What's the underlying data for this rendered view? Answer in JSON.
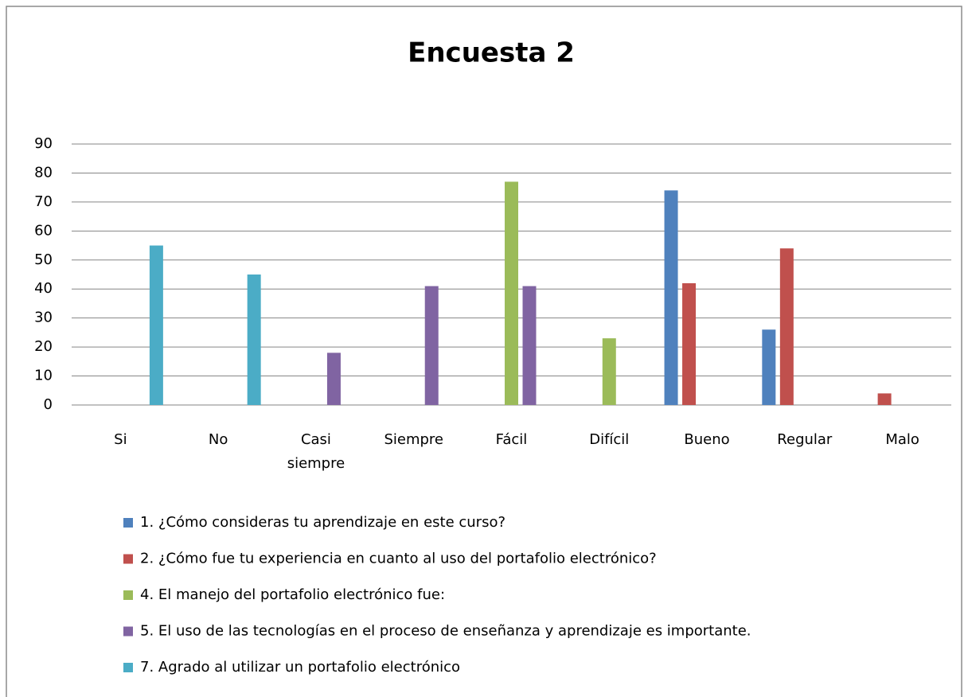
{
  "chart_data": {
    "type": "bar",
    "title": "Encuesta 2",
    "categories": [
      "Si",
      "No",
      "Casi siempre",
      "Siempre",
      "Fácil",
      "Difícil",
      "Bueno",
      "Regular",
      "Malo"
    ],
    "series": [
      {
        "name": "1. ¿Cómo consideras tu aprendizaje en este curso?",
        "color": "#4f81bd",
        "values": [
          null,
          null,
          null,
          null,
          null,
          null,
          74,
          26,
          null
        ]
      },
      {
        "name": "2. ¿Cómo fue tu experiencia en cuanto al uso del portafolio electrónico?",
        "color": "#c0504d",
        "values": [
          null,
          null,
          null,
          null,
          null,
          null,
          42,
          54,
          4
        ]
      },
      {
        "name": "4. El manejo del portafolio electrónico fue:",
        "color": "#9bbb59",
        "values": [
          null,
          null,
          null,
          null,
          77,
          23,
          null,
          null,
          null
        ]
      },
      {
        "name": "5. El uso de las tecnologías en el proceso de enseñanza y aprendizaje es importante.",
        "color": "#8064a2",
        "values": [
          null,
          null,
          18,
          41,
          41,
          null,
          null,
          null,
          null
        ]
      },
      {
        "name": "7. Agrado al utilizar un portafolio electrónico",
        "color": "#4bacc6",
        "values": [
          55,
          45,
          null,
          null,
          null,
          null,
          null,
          null,
          null
        ]
      }
    ],
    "ylim": [
      0,
      90
    ],
    "yticks": [
      0,
      10,
      20,
      30,
      40,
      50,
      60,
      70,
      80,
      90
    ],
    "grid": true,
    "legend": "bottom"
  }
}
